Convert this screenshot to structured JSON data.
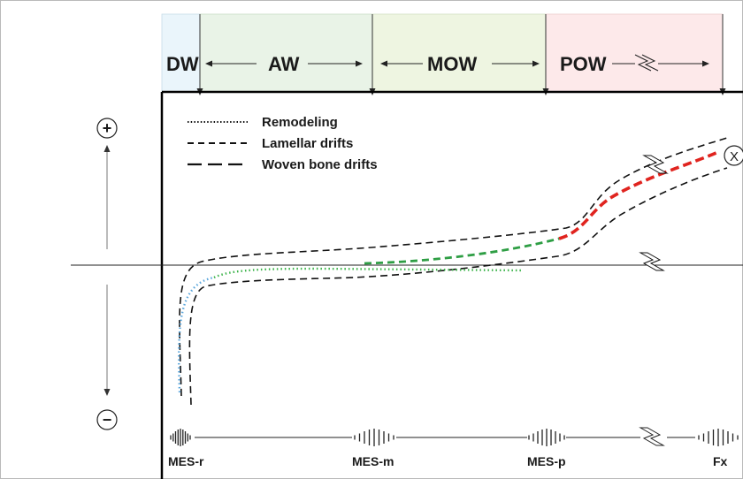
{
  "zones": [
    {
      "label": "DW",
      "color": "#eaf5fb"
    },
    {
      "label": "AW",
      "color": "#e9f3e7"
    },
    {
      "label": "MOW",
      "color": "#eef5e1"
    },
    {
      "label": "POW",
      "color": "#fde9ea"
    }
  ],
  "legend": [
    {
      "label": "Remodeling",
      "style": "dotted"
    },
    {
      "label": "Lamellar drifts",
      "style": "short-dash"
    },
    {
      "label": "Woven bone drifts",
      "style": "long-dash"
    }
  ],
  "axis": {
    "plus_symbol": "+",
    "minus_symbol": "−",
    "endpoint_marker": "X"
  },
  "mes_markers": [
    {
      "label": "MES-r"
    },
    {
      "label": "MES-m"
    },
    {
      "label": "MES-p"
    },
    {
      "label": "Fx"
    }
  ],
  "colors": {
    "remodeling_blue": "#5aa6dc",
    "remodeling_green": "#3cb34a",
    "lamellar_green": "#2e9e44",
    "woven_red": "#e0241f",
    "envelope_black": "#111111"
  }
}
